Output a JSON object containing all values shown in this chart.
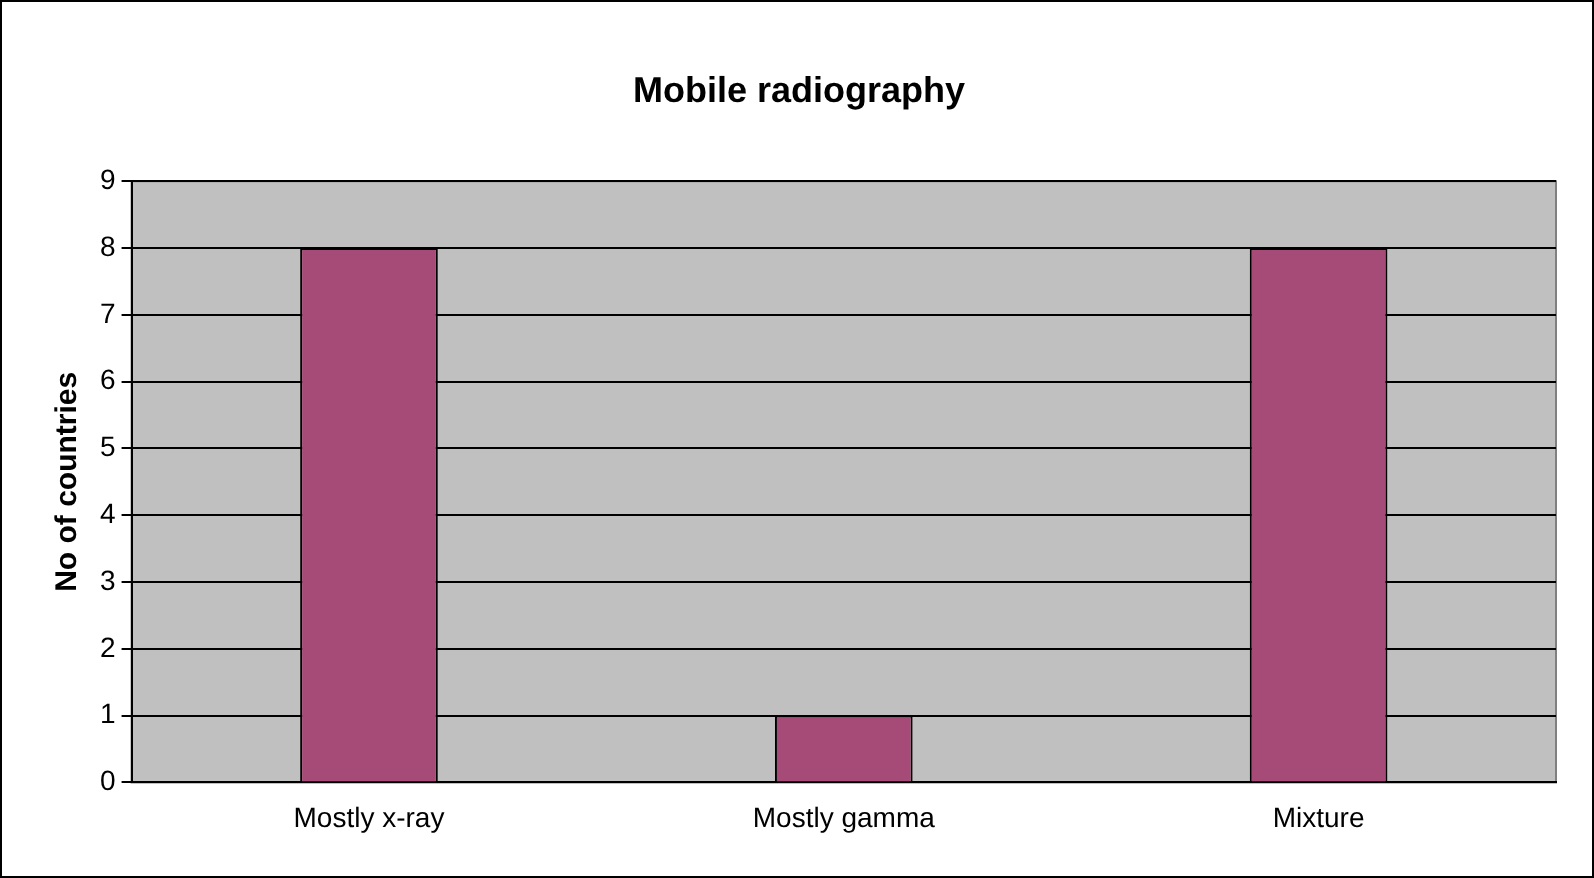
{
  "chart_data": {
    "type": "bar",
    "title": "Mobile radiography",
    "ylabel": "No of countries",
    "categories": [
      "Mostly x-ray",
      "Mostly gamma",
      "Mixture"
    ],
    "values": [
      8,
      1,
      8
    ],
    "color": "#a64b78",
    "ylim": [
      0,
      9
    ],
    "yticks": [
      0,
      1,
      2,
      3,
      4,
      5,
      6,
      7,
      8,
      9
    ],
    "grid": "y",
    "legend": false
  }
}
